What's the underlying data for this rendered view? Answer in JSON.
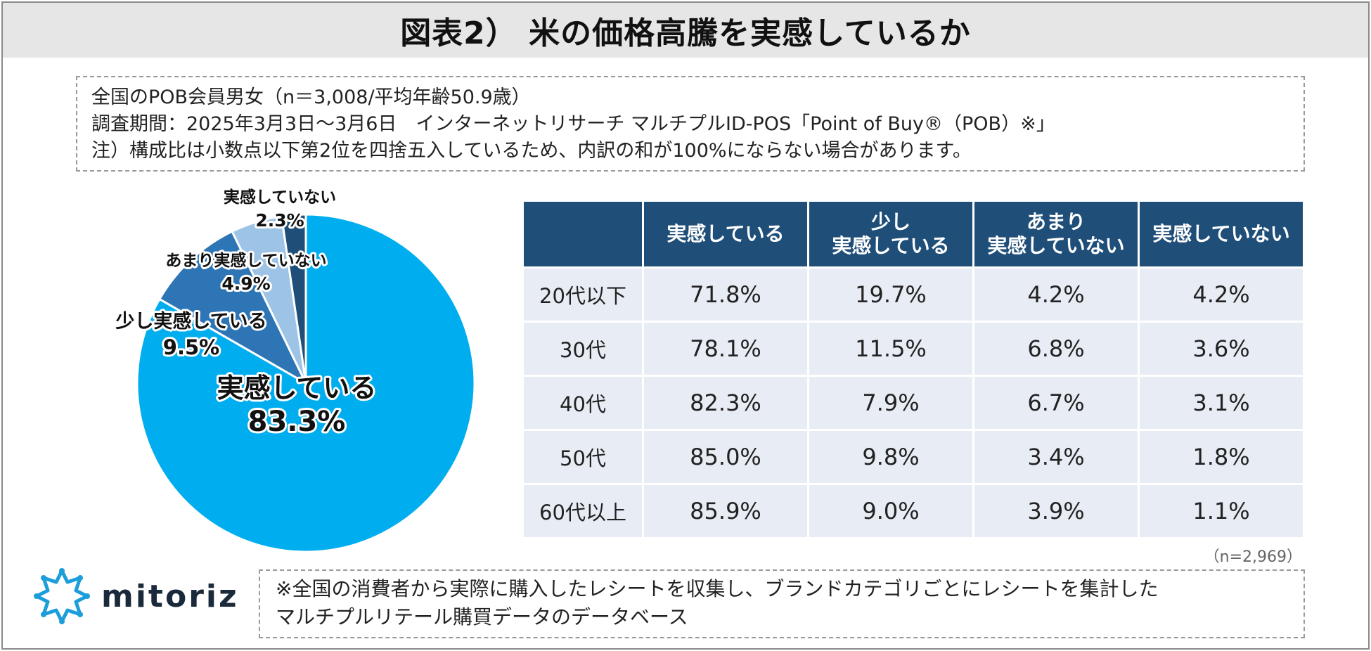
{
  "title": "図表2） 米の価格高騰を実感しているか",
  "notes": [
    "全国のPOB会員男女（n＝3,008/平均年齢50.9歳）",
    "調査期間：2025年3月3日～3月6日　インターネットリサーチ マルチプルID-POS「Point of Buy®（POB）※」",
    "注）構成比は小数点以下第2位を四捨五入しているため、内訳の和が100%にならない場合があります。"
  ],
  "chart_data": [
    {
      "type": "pie",
      "title": "",
      "slices": [
        {
          "label": "実感している",
          "value": 83.3,
          "value_label": "83.3%",
          "color": "#00aeef"
        },
        {
          "label": "少し実感している",
          "value": 9.5,
          "value_label": "9.5%",
          "color": "#2e75b6"
        },
        {
          "label": "あまり実感していない",
          "value": 4.9,
          "value_label": "4.9%",
          "color": "#9dc3e6"
        },
        {
          "label": "実感していない",
          "value": 2.3,
          "value_label": "2.3%",
          "color": "#1f4e79"
        }
      ]
    },
    {
      "type": "table",
      "columns": [
        "",
        "実感している",
        "少し\n実感している",
        "あまり\n実感していない",
        "実感していない"
      ],
      "rows": [
        {
          "label": "20代以下",
          "values": [
            "71.8%",
            "19.7%",
            "4.2%",
            "4.2%"
          ]
        },
        {
          "label": "30代",
          "values": [
            "78.1%",
            "11.5%",
            "6.8%",
            "3.6%"
          ]
        },
        {
          "label": "40代",
          "values": [
            "82.3%",
            "7.9%",
            "6.7%",
            "3.1%"
          ]
        },
        {
          "label": "50代",
          "values": [
            "85.0%",
            "9.8%",
            "3.4%",
            "1.8%"
          ]
        },
        {
          "label": "60代以上",
          "values": [
            "85.9%",
            "9.0%",
            "3.9%",
            "1.1%"
          ]
        }
      ],
      "n_note": "（n=2,969）"
    }
  ],
  "logo": {
    "text": "mitoriz",
    "icon": "mitoriz-logo-icon",
    "color": "#1b9ed9"
  },
  "footer": [
    "※全国の消費者から実際に購入したレシートを収集し、ブランドカテゴリごとにレシートを集計した",
    "マルチプルリテール購買データのデータベース"
  ]
}
